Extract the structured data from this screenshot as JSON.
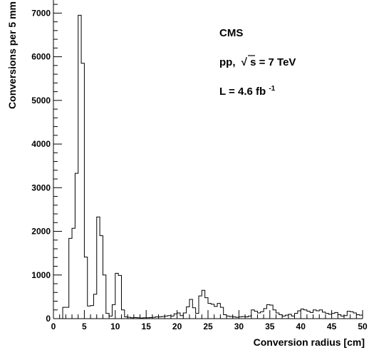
{
  "chart_data": {
    "type": "histogram",
    "xlabel": "Conversion radius [cm]",
    "ylabel": "Conversions per 5 mm",
    "xlim": [
      0,
      50
    ],
    "ylim": [
      0,
      7300
    ],
    "bin_width": 0.5,
    "x_ticks": [
      0,
      5,
      10,
      15,
      20,
      25,
      30,
      35,
      40,
      45,
      50
    ],
    "x_tick_labels": [
      "0",
      "5",
      "10",
      "15",
      "20",
      "25",
      "30",
      "35",
      "40",
      "45",
      "50"
    ],
    "y_ticks": [
      0,
      1000,
      2000,
      3000,
      4000,
      5000,
      6000,
      7000
    ],
    "y_tick_labels": [
      "0",
      "1000",
      "2000",
      "3000",
      "4000",
      "5000",
      "6000",
      "7000"
    ],
    "grid": false,
    "annotations": {
      "experiment": "CMS",
      "energy_prefix": "pp,",
      "energy_sqrt_symbol": "√",
      "energy_var": "s",
      "energy_suffix": " = 7 TeV",
      "lumi_prefix": "L = 4.6 fb",
      "lumi_exponent": "-1"
    },
    "bins": [
      {
        "x": 1.5,
        "y": 260
      },
      {
        "x": 2.0,
        "y": 260
      },
      {
        "x": 2.5,
        "y": 1840
      },
      {
        "x": 3.0,
        "y": 2070
      },
      {
        "x": 3.5,
        "y": 3330
      },
      {
        "x": 4.0,
        "y": 6950
      },
      {
        "x": 4.5,
        "y": 5850
      },
      {
        "x": 5.0,
        "y": 1410
      },
      {
        "x": 5.5,
        "y": 290
      },
      {
        "x": 6.0,
        "y": 300
      },
      {
        "x": 6.5,
        "y": 560
      },
      {
        "x": 7.0,
        "y": 2330
      },
      {
        "x": 7.5,
        "y": 1900
      },
      {
        "x": 8.0,
        "y": 1000
      },
      {
        "x": 8.5,
        "y": 120
      },
      {
        "x": 9.0,
        "y": 60
      },
      {
        "x": 9.5,
        "y": 320
      },
      {
        "x": 10.0,
        "y": 1040
      },
      {
        "x": 10.5,
        "y": 990
      },
      {
        "x": 11.0,
        "y": 200
      },
      {
        "x": 11.5,
        "y": 40
      },
      {
        "x": 12.0,
        "y": 30
      },
      {
        "x": 12.5,
        "y": 20
      },
      {
        "x": 13.0,
        "y": 25
      },
      {
        "x": 13.5,
        "y": 20
      },
      {
        "x": 14.0,
        "y": 15
      },
      {
        "x": 14.5,
        "y": 20
      },
      {
        "x": 15.0,
        "y": 20
      },
      {
        "x": 15.5,
        "y": 25
      },
      {
        "x": 16.0,
        "y": 30
      },
      {
        "x": 16.5,
        "y": 40
      },
      {
        "x": 17.0,
        "y": 40
      },
      {
        "x": 17.5,
        "y": 50
      },
      {
        "x": 18.0,
        "y": 60
      },
      {
        "x": 18.5,
        "y": 70
      },
      {
        "x": 19.0,
        "y": 60
      },
      {
        "x": 19.5,
        "y": 110
      },
      {
        "x": 20.0,
        "y": 130
      },
      {
        "x": 20.5,
        "y": 70
      },
      {
        "x": 21.0,
        "y": 130
      },
      {
        "x": 21.5,
        "y": 270
      },
      {
        "x": 22.0,
        "y": 440
      },
      {
        "x": 22.5,
        "y": 250
      },
      {
        "x": 23.0,
        "y": 120
      },
      {
        "x": 23.5,
        "y": 520
      },
      {
        "x": 24.0,
        "y": 650
      },
      {
        "x": 24.5,
        "y": 480
      },
      {
        "x": 25.0,
        "y": 350
      },
      {
        "x": 25.5,
        "y": 330
      },
      {
        "x": 26.0,
        "y": 280
      },
      {
        "x": 26.5,
        "y": 350
      },
      {
        "x": 27.0,
        "y": 260
      },
      {
        "x": 27.5,
        "y": 90
      },
      {
        "x": 28.0,
        "y": 60
      },
      {
        "x": 28.5,
        "y": 50
      },
      {
        "x": 29.0,
        "y": 40
      },
      {
        "x": 29.5,
        "y": 30
      },
      {
        "x": 30.0,
        "y": 40
      },
      {
        "x": 30.5,
        "y": 50
      },
      {
        "x": 31.0,
        "y": 40
      },
      {
        "x": 31.5,
        "y": 60
      },
      {
        "x": 32.0,
        "y": 200
      },
      {
        "x": 32.5,
        "y": 170
      },
      {
        "x": 33.0,
        "y": 130
      },
      {
        "x": 33.5,
        "y": 160
      },
      {
        "x": 34.0,
        "y": 230
      },
      {
        "x": 34.5,
        "y": 320
      },
      {
        "x": 35.0,
        "y": 310
      },
      {
        "x": 35.5,
        "y": 200
      },
      {
        "x": 36.0,
        "y": 130
      },
      {
        "x": 36.5,
        "y": 90
      },
      {
        "x": 37.0,
        "y": 60
      },
      {
        "x": 37.5,
        "y": 80
      },
      {
        "x": 38.0,
        "y": 100
      },
      {
        "x": 38.5,
        "y": 60
      },
      {
        "x": 39.0,
        "y": 120
      },
      {
        "x": 39.5,
        "y": 180
      },
      {
        "x": 40.0,
        "y": 220
      },
      {
        "x": 40.5,
        "y": 200
      },
      {
        "x": 41.0,
        "y": 170
      },
      {
        "x": 41.5,
        "y": 140
      },
      {
        "x": 42.0,
        "y": 200
      },
      {
        "x": 42.5,
        "y": 180
      },
      {
        "x": 43.0,
        "y": 200
      },
      {
        "x": 43.5,
        "y": 150
      },
      {
        "x": 44.0,
        "y": 120
      },
      {
        "x": 44.5,
        "y": 100
      },
      {
        "x": 45.0,
        "y": 120
      },
      {
        "x": 45.5,
        "y": 140
      },
      {
        "x": 46.0,
        "y": 90
      },
      {
        "x": 46.5,
        "y": 60
      },
      {
        "x": 47.0,
        "y": 70
      },
      {
        "x": 47.5,
        "y": 170
      },
      {
        "x": 48.0,
        "y": 160
      },
      {
        "x": 48.5,
        "y": 130
      },
      {
        "x": 49.0,
        "y": 90
      },
      {
        "x": 49.5,
        "y": 80
      }
    ]
  }
}
